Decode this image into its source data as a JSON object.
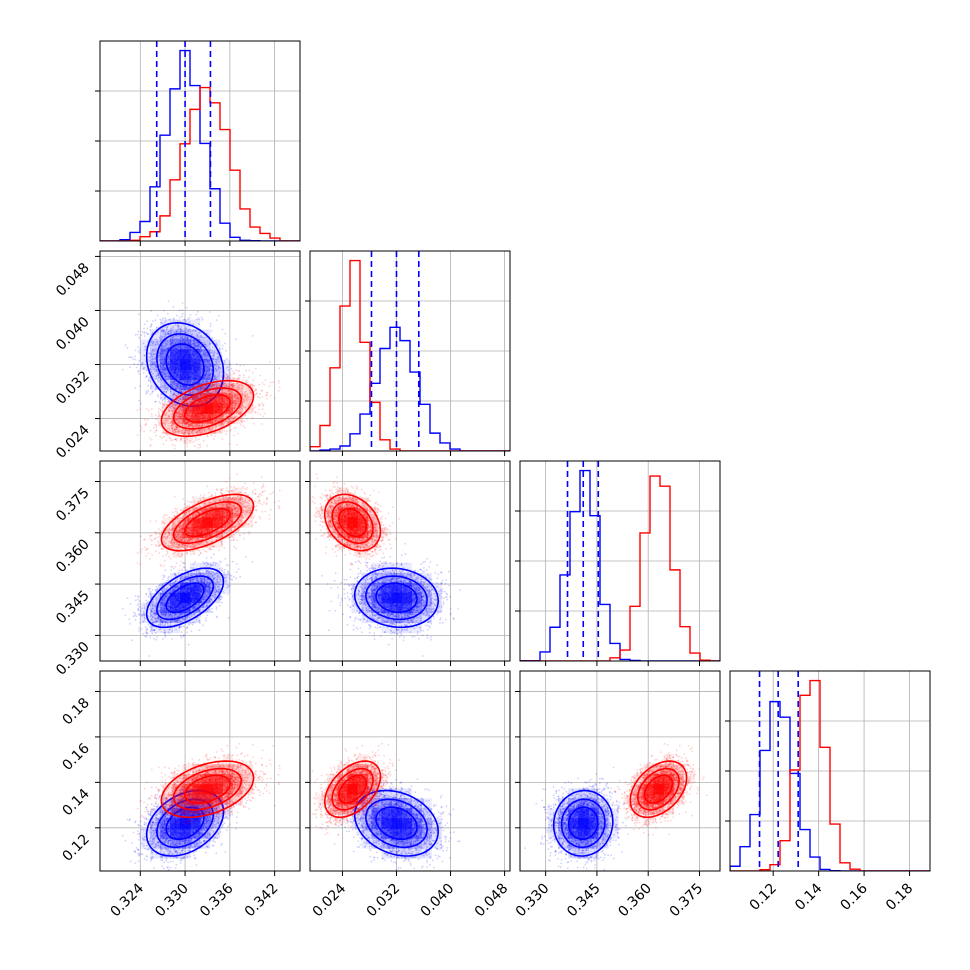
{
  "colors": {
    "series_a": "#0000ff",
    "series_b": "#ff0000",
    "grid": "#b0b0b0"
  },
  "chart_data": {
    "type": "corner",
    "title": "",
    "grid": true,
    "legend": "none",
    "parameters": [
      {
        "ticks": [
          0.324,
          0.33,
          0.336,
          0.342
        ],
        "tick_labels": [
          "0.324",
          "0.330",
          "0.336",
          "0.342"
        ],
        "range": [
          0.3186,
          0.3454
        ]
      },
      {
        "ticks": [
          0.024,
          0.032,
          0.04,
          0.048
        ],
        "tick_labels": [
          "0.024",
          "0.032",
          "0.040",
          "0.048"
        ],
        "range": [
          0.0192,
          0.0488
        ]
      },
      {
        "ticks": [
          0.33,
          0.345,
          0.36,
          0.375
        ],
        "tick_labels": [
          "0.330",
          "0.345",
          "0.360",
          "0.375"
        ],
        "range": [
          0.3225,
          0.381
        ]
      },
      {
        "ticks": [
          0.12,
          0.14,
          0.16,
          0.18
        ],
        "tick_labels": [
          "0.12",
          "0.14",
          "0.16",
          "0.18"
        ],
        "range": [
          0.101,
          0.189
        ]
      }
    ],
    "series": [
      {
        "color": "#0000ff",
        "mean": [
          0.33,
          0.032,
          0.341,
          0.122
        ],
        "sd": [
          0.0025,
          0.003,
          0.0042,
          0.007
        ],
        "corr": {
          "0-1": -0.2,
          "0-2": 0.55,
          "0-3": 0.35,
          "1-2": -0.1,
          "1-3": -0.25,
          "2-3": 0.05
        },
        "quantiles": [
          [
            0.3262,
            0.33,
            0.3334
          ],
          [
            0.0283,
            0.032,
            0.0353
          ],
          [
            0.3364,
            0.341,
            0.3454
          ],
          [
            0.114,
            0.1222,
            0.131
          ]
        ]
      },
      {
        "color": "#ff0000",
        "mean": [
          0.333,
          0.0255,
          0.363,
          0.137
        ],
        "sd": [
          0.003,
          0.002,
          0.004,
          0.006
        ],
        "corr": {
          "0-1": 0.45,
          "0-2": 0.6,
          "0-3": 0.4,
          "1-2": -0.3,
          "1-3": 0.45,
          "2-3": 0.4
        },
        "quantiles": []
      }
    ]
  }
}
